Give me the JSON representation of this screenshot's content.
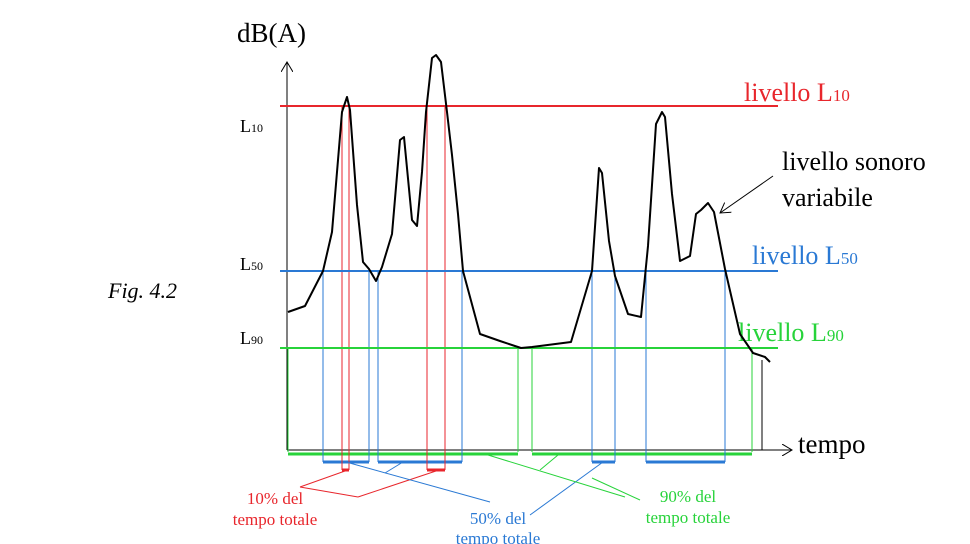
{
  "figure_caption": "Fig. 4.2",
  "axes": {
    "y_label": "dB(A)",
    "x_label": "tempo"
  },
  "levels": [
    {
      "id": "l10",
      "tick": "L",
      "tick_sub": "10",
      "label": "livello L",
      "label_sub": "10",
      "color": "#e8262c"
    },
    {
      "id": "l50",
      "tick": "L",
      "tick_sub": "50",
      "label": "livello L",
      "label_sub": "50",
      "color": "#2a79d4"
    },
    {
      "id": "l90",
      "tick": "L",
      "tick_sub": "90",
      "label": "livello L",
      "label_sub": "90",
      "color": "#27d33a"
    }
  ],
  "signal_label": {
    "line1": "livello sonoro",
    "line2": "variabile",
    "color": "#000000"
  },
  "notes": [
    {
      "line1": "10% del",
      "line2": "tempo totale",
      "color": "#e8262c"
    },
    {
      "line1": "50% del",
      "line2": "tempo totale",
      "color": "#2a79d4"
    },
    {
      "line1": "90% del",
      "line2": "tempo totale",
      "color": "#27d33a"
    }
  ]
}
